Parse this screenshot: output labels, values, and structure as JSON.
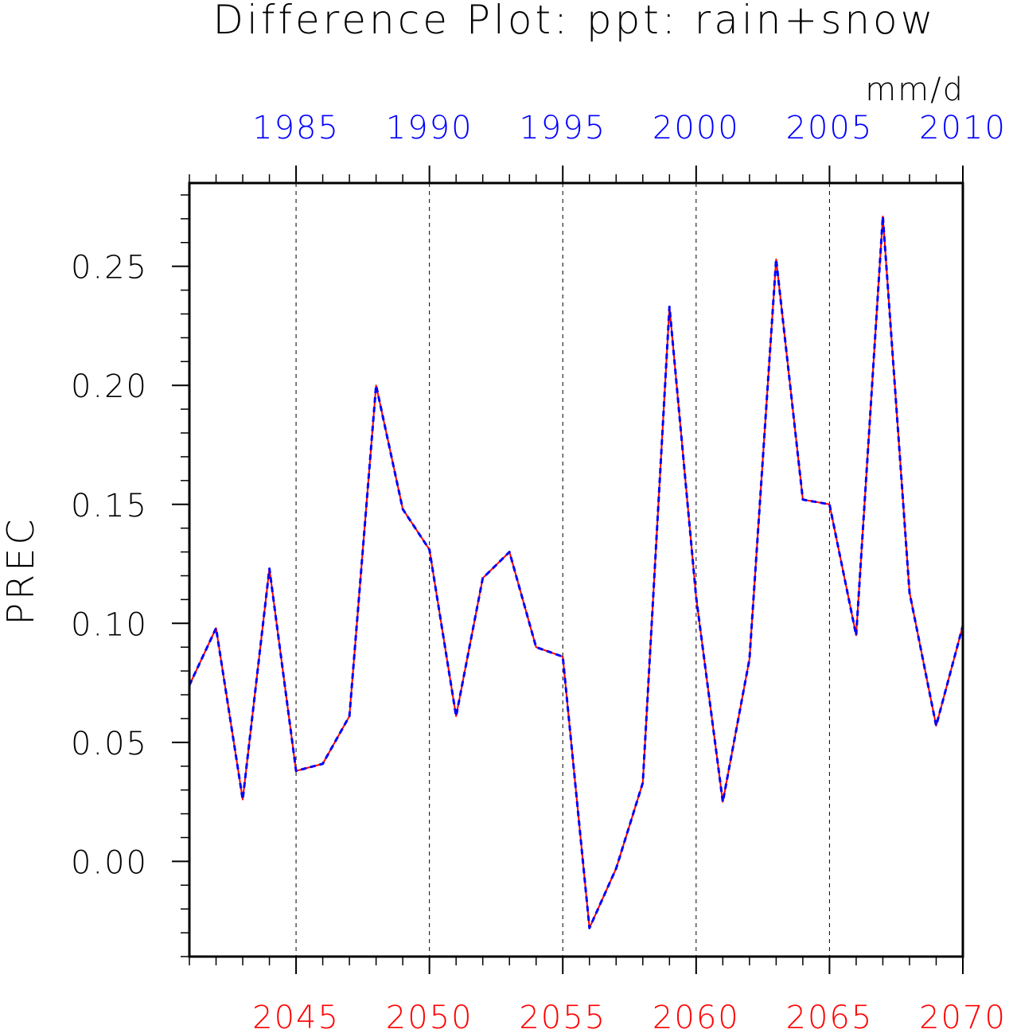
{
  "chart_data": {
    "type": "line",
    "title": "Difference Plot: ppt: rain+snow",
    "units": "mm/d",
    "ylabel": "PREC",
    "ylim": [
      -0.04,
      0.285
    ],
    "yticks": [
      0.0,
      0.05,
      0.1,
      0.15,
      0.2,
      0.25
    ],
    "ytick_labels": [
      "0.00",
      "0.05",
      "0.10",
      "0.15",
      "0.20",
      "0.25"
    ],
    "bottom_axis": {
      "color": "#ff0000",
      "range": [
        2041,
        2070
      ],
      "ticks": [
        2045,
        2050,
        2055,
        2060,
        2065,
        2070
      ],
      "tick_labels": [
        "2045",
        "2050",
        "2055",
        "2060",
        "2065",
        "2070"
      ]
    },
    "top_axis": {
      "color": "#0000ff",
      "range": [
        1981,
        2010
      ],
      "ticks": [
        1985,
        1990,
        1995,
        2000,
        2005,
        2010
      ],
      "tick_labels": [
        "1985",
        "1990",
        "1995",
        "2000",
        "2005",
        "2010"
      ]
    },
    "grid": "vertical dashed at major bottom ticks",
    "series": [
      {
        "color": "#ff0000",
        "style": "solid",
        "x": [
          2041,
          2042,
          2043,
          2044,
          2045,
          2046,
          2047,
          2048,
          2049,
          2050,
          2051,
          2052,
          2053,
          2054,
          2055,
          2056,
          2057,
          2058,
          2059,
          2060,
          2061,
          2062,
          2063,
          2064,
          2065,
          2066,
          2067,
          2068,
          2069,
          2070
        ],
        "values": [
          0.074,
          0.098,
          0.026,
          0.123,
          0.038,
          0.041,
          0.061,
          0.2,
          0.148,
          0.131,
          0.061,
          0.119,
          0.13,
          0.09,
          0.086,
          -0.028,
          -0.003,
          0.033,
          0.233,
          0.111,
          0.025,
          0.085,
          0.253,
          0.152,
          0.15,
          0.095,
          0.271,
          0.113,
          0.057,
          0.099
        ]
      },
      {
        "color": "#0000ff",
        "style": "dashed",
        "x": [
          1981,
          1982,
          1983,
          1984,
          1985,
          1986,
          1987,
          1988,
          1989,
          1990,
          1991,
          1992,
          1993,
          1994,
          1995,
          1996,
          1997,
          1998,
          1999,
          2000,
          2001,
          2002,
          2003,
          2004,
          2005,
          2006,
          2007,
          2008,
          2009,
          2010
        ],
        "values": [
          0.074,
          0.098,
          0.026,
          0.123,
          0.038,
          0.041,
          0.061,
          0.2,
          0.148,
          0.131,
          0.061,
          0.119,
          0.13,
          0.09,
          0.086,
          -0.028,
          -0.003,
          0.033,
          0.233,
          0.111,
          0.025,
          0.085,
          0.253,
          0.152,
          0.15,
          0.095,
          0.271,
          0.113,
          0.057,
          0.099
        ]
      }
    ]
  }
}
